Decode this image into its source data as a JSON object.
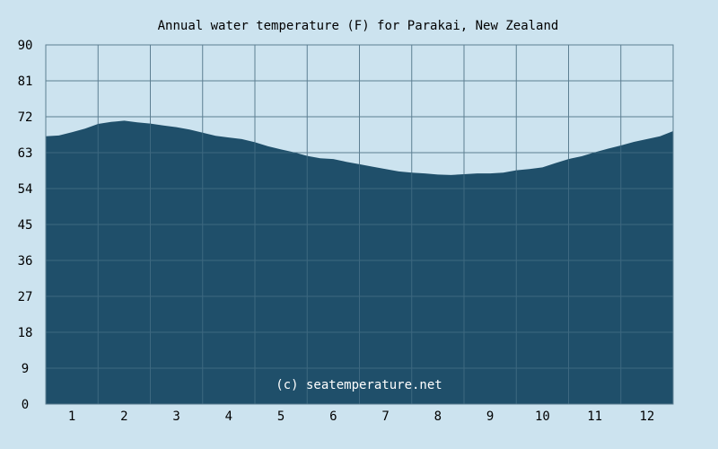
{
  "colors": {
    "background": "#cce3ef",
    "area_fill": "#1f4f6a",
    "grid": "#5d7f92",
    "grid_over_area": "#3d6880",
    "text": "#000000",
    "watermark": "#ffffff"
  },
  "chart_data": {
    "type": "area",
    "title": "Annual water temperature (F) for Parakai, New Zealand",
    "xlabel": "",
    "ylabel": "",
    "watermark": "(c) seatemperature.net",
    "grid": true,
    "xlim": [
      0.5,
      12.5
    ],
    "ylim": [
      0,
      90
    ],
    "y_ticks": [
      "0",
      "9",
      "18",
      "27",
      "36",
      "45",
      "54",
      "63",
      "72",
      "81",
      "90"
    ],
    "x_ticks": [
      "1",
      "2",
      "3",
      "4",
      "5",
      "6",
      "7",
      "8",
      "9",
      "10",
      "11",
      "12"
    ],
    "series": [
      {
        "x": [
          0.5,
          0.75,
          1.0,
          1.25,
          1.5,
          1.75,
          2.0,
          2.25,
          2.5,
          2.75,
          3.0,
          3.25,
          3.5,
          3.75,
          4.0,
          4.25,
          4.5,
          4.75,
          5.0,
          5.25,
          5.5,
          5.75,
          6.0,
          6.25,
          6.5,
          6.75,
          7.0,
          7.25,
          7.5,
          7.75,
          8.0,
          8.25,
          8.5,
          8.75,
          9.0,
          9.25,
          9.5,
          9.75,
          10.0,
          10.25,
          10.5,
          10.75,
          11.0,
          11.25,
          11.5,
          11.75,
          12.0,
          12.25,
          12.5
        ],
        "values": [
          67.1,
          67.3,
          68.1,
          69.0,
          70.2,
          70.7,
          71.0,
          70.6,
          70.3,
          69.8,
          69.4,
          68.8,
          68.0,
          67.2,
          66.8,
          66.4,
          65.6,
          64.6,
          63.8,
          63.1,
          62.2,
          61.6,
          61.4,
          60.7,
          60.1,
          59.5,
          58.9,
          58.3,
          58.0,
          57.8,
          57.5,
          57.4,
          57.6,
          57.8,
          57.8,
          58.0,
          58.6,
          58.9,
          59.3,
          60.4,
          61.4,
          62.1,
          63.1,
          64.0,
          64.8,
          65.7,
          66.4,
          67.1,
          68.4
        ]
      }
    ]
  }
}
